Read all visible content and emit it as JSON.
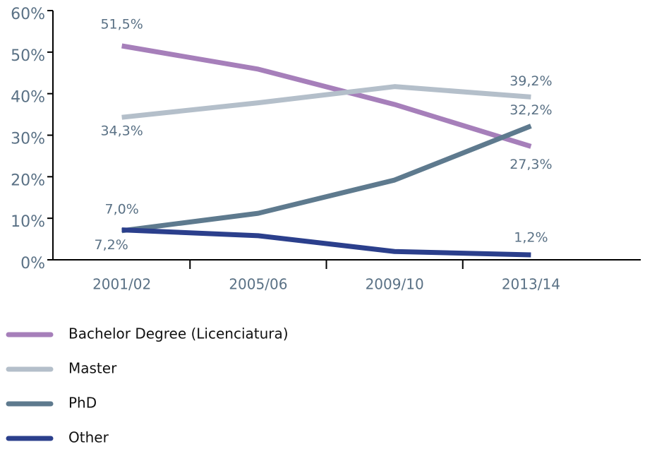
{
  "chart_data": {
    "type": "line",
    "categories": [
      "2001/02",
      "2005/06",
      "2009/10",
      "2013/14"
    ],
    "series": [
      {
        "name": "Bachelor Degree (Licenciatura)",
        "color": "#a67fba",
        "values": [
          51.5,
          45.9,
          37.4,
          27.3
        ],
        "value_labels": [
          "51,5%",
          null,
          null,
          "27,3%"
        ]
      },
      {
        "name": "Master",
        "color": "#b4bfca",
        "values": [
          34.3,
          37.8,
          41.7,
          39.2
        ],
        "value_labels": [
          "34,3%",
          null,
          null,
          "39,2%"
        ]
      },
      {
        "name": "PhD",
        "color": "#5e7a8e",
        "values": [
          7.0,
          11.2,
          19.2,
          32.2
        ],
        "value_labels": [
          "7,0%",
          null,
          null,
          "32,2%"
        ]
      },
      {
        "name": "Other",
        "color": "#2b3f8c",
        "values": [
          7.2,
          5.8,
          2.0,
          1.2
        ],
        "value_labels": [
          "7,2%",
          null,
          null,
          "1,2%"
        ]
      }
    ],
    "ylim": [
      0,
      60
    ],
    "yticks": [
      {
        "value": 0,
        "label": "0%"
      },
      {
        "value": 10,
        "label": "10%"
      },
      {
        "value": 20,
        "label": "20%"
      },
      {
        "value": 30,
        "label": "30%"
      },
      {
        "value": 40,
        "label": "40%"
      },
      {
        "value": 50,
        "label": "50%"
      },
      {
        "value": 60,
        "label": "60%"
      }
    ],
    "grid": false,
    "legend": "bottom"
  }
}
